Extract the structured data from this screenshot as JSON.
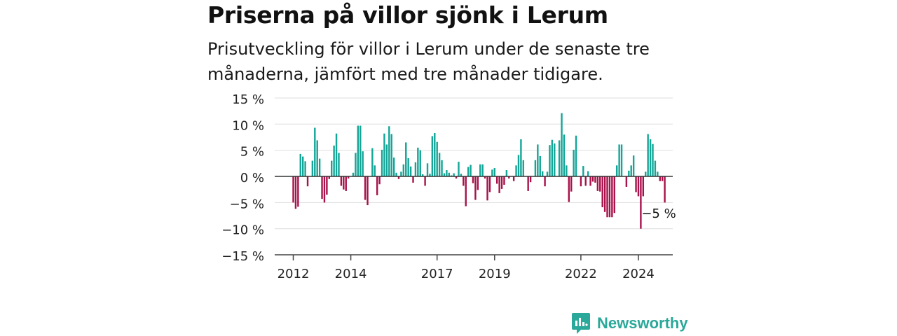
{
  "header": {
    "title": "Priserna på villor sjönk i Lerum",
    "subtitle": "Prisutveckling för villor i Lerum under de senaste tre månaderna, jämfört med tre månader tidigare."
  },
  "brand": {
    "name": "Newsworthy",
    "icon": "newsworthy-logo-icon",
    "color": "#2aa89a"
  },
  "colors": {
    "positive": "#13a597",
    "negative": "#a8114a"
  },
  "chart_data": {
    "type": "bar",
    "unit": "%",
    "y_ticks": [
      15,
      10,
      5,
      0,
      -5,
      -10,
      -15
    ],
    "y_tick_labels": [
      "15 %",
      "10 %",
      "5 %",
      "0 %",
      "−5 %",
      "−10 %",
      "−15 %"
    ],
    "ylim": [
      -15,
      15
    ],
    "x_ticks": [
      {
        "label": "2012",
        "year": 2012
      },
      {
        "label": "2014",
        "year": 2014
      },
      {
        "label": "2017",
        "year": 2017
      },
      {
        "label": "2019",
        "year": 2019
      },
      {
        "label": "2022",
        "year": 2022
      },
      {
        "label": "2024",
        "year": 2024
      }
    ],
    "first_period": "2012-01",
    "frequency": "monthly",
    "values": [
      -5,
      -6.2,
      -5.8,
      4.3,
      3.8,
      2.9,
      -1.9,
      0,
      3,
      9.3,
      6.9,
      3.4,
      -4.3,
      -5,
      -3.5,
      -0.5,
      3,
      5.9,
      8.2,
      4.5,
      -1.8,
      -2.5,
      -2.8,
      -0.4,
      0,
      0.7,
      4.5,
      9.7,
      9.7,
      4.8,
      -4.5,
      -5.5,
      0,
      5.4,
      2.1,
      -3.6,
      -1.5,
      5.1,
      8.2,
      6.1,
      9.6,
      8.1,
      3.6,
      0.7,
      -0.5,
      0.9,
      2.3,
      6.5,
      3.5,
      1.9,
      -1.2,
      2.7,
      5.5,
      5,
      0.4,
      -1.8,
      2.5,
      0.5,
      7.7,
      8.3,
      6.6,
      4.5,
      3.1,
      0.6,
      1.2,
      0.7,
      0.2,
      0.6,
      -0.4,
      2.8,
      0.5,
      -1.8,
      -5.7,
      1.8,
      2.2,
      -1.3,
      -4.5,
      -2.6,
      2.3,
      2.3,
      -0.4,
      -4.6,
      -3,
      1.3,
      1.6,
      -1.4,
      -3.2,
      -2.4,
      -1.6,
      1.2,
      -0.4,
      0,
      -0.9,
      2.1,
      4.1,
      7.1,
      3.1,
      0,
      -2.8,
      -1.1,
      0,
      3.1,
      6.1,
      3.9,
      1,
      -1.9,
      0.9,
      6,
      7,
      6.3,
      0,
      6.9,
      12.1,
      8,
      2.1,
      -4.9,
      -2.9,
      5.1,
      7.8,
      0,
      -1.9,
      2,
      -1.8,
      1,
      -1.8,
      -1,
      -1.2,
      -2.8,
      -2.9,
      -5.9,
      -6.8,
      -7.8,
      -7.8,
      -7.8,
      -7,
      2.1,
      6.1,
      6.1,
      0,
      -2,
      1.1,
      2.1,
      4,
      -3,
      -3.8,
      -10,
      -3.8,
      0.9,
      8.1,
      7.1,
      6.2,
      3,
      0.9,
      -0.9,
      -0.9,
      -5
    ],
    "annotation": {
      "text": "−5 %",
      "index": 152
    }
  }
}
